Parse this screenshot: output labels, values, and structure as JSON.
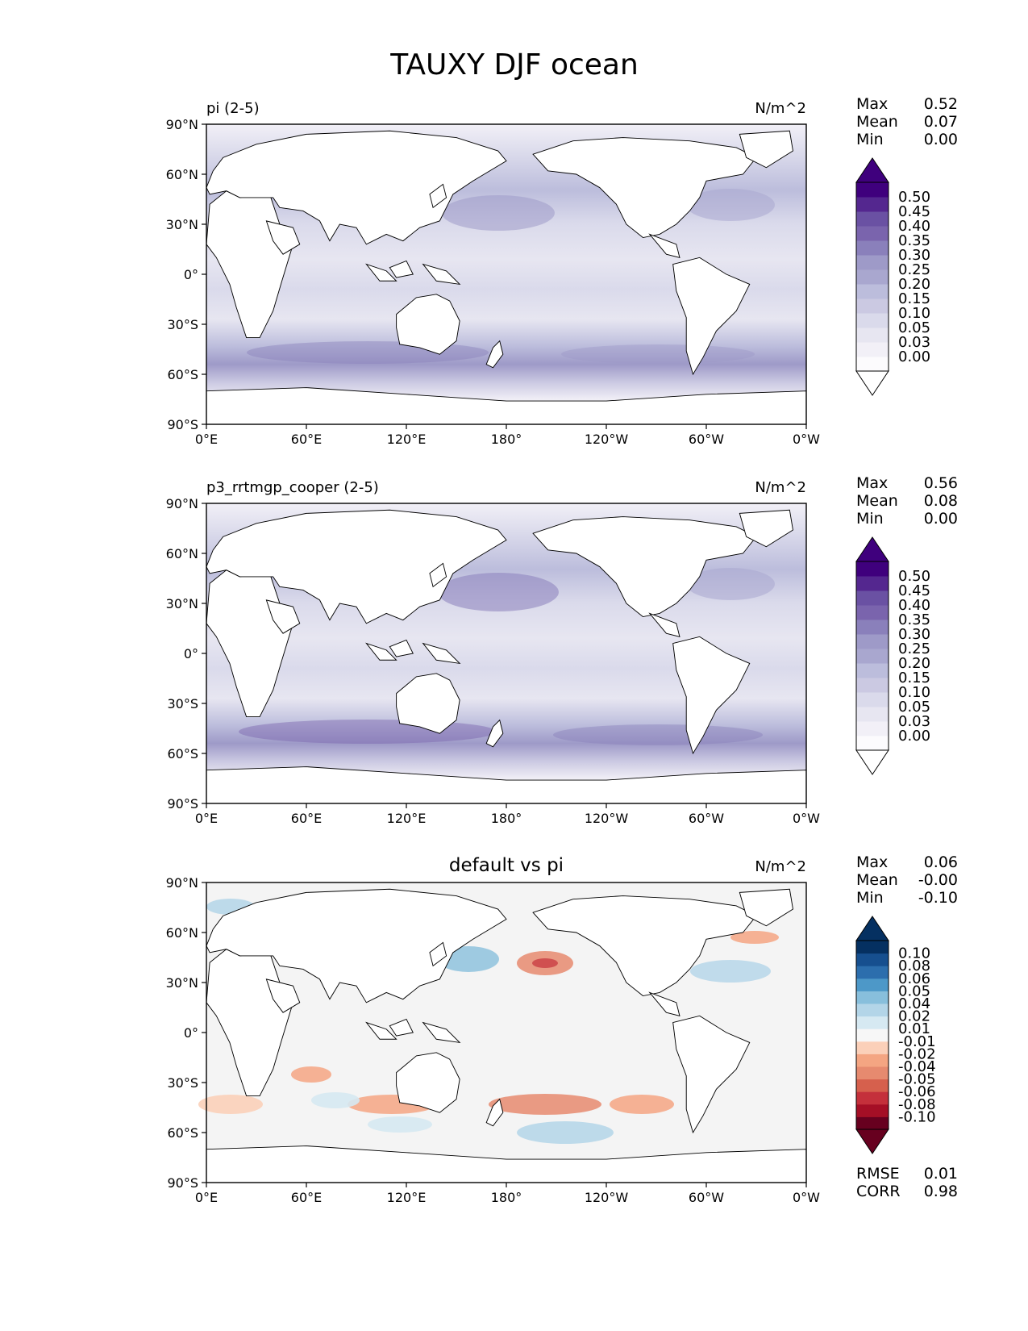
{
  "figure": {
    "title": "TAUXY DJF ocean"
  },
  "axes": {
    "lat_ticks": [
      "90°N",
      "60°N",
      "30°N",
      "0°",
      "30°S",
      "60°S",
      "90°S"
    ],
    "lon_ticks": [
      "0°E",
      "60°E",
      "120°E",
      "180°",
      "120°W",
      "60°W",
      "0°W"
    ]
  },
  "stat_labels": {
    "max": "Max",
    "mean": "Mean",
    "min": "Min",
    "rmse": "RMSE",
    "corr": "CORR"
  },
  "panels": [
    {
      "id": "test",
      "left_title": "pi (2-5)",
      "center_title": "",
      "units": "N/m^2",
      "stats": {
        "max": "0.52",
        "mean": "0.07",
        "min": "0.00"
      },
      "colormap": "purples",
      "colorbar": {
        "ticks": [
          "0.00",
          "0.03",
          "0.05",
          "0.10",
          "0.15",
          "0.20",
          "0.25",
          "0.30",
          "0.35",
          "0.40",
          "0.45",
          "0.50"
        ],
        "colors": [
          "#fcfbfd",
          "#f2f0f7",
          "#e7e6f1",
          "#dadaeb",
          "#cbc9e2",
          "#bcbddc",
          "#a9a7cf",
          "#9e9ac8",
          "#8a80bb",
          "#7a64ad",
          "#6a51a3",
          "#54278f",
          "#3f007d"
        ],
        "under": "#ffffff",
        "over": "#3f007d"
      }
    },
    {
      "id": "ref",
      "left_title": "p3_rrtmgp_cooper (2-5)",
      "center_title": "",
      "units": "N/m^2",
      "stats": {
        "max": "0.56",
        "mean": "0.08",
        "min": "0.00"
      },
      "colormap": "purples",
      "colorbar": {
        "ticks": [
          "0.00",
          "0.03",
          "0.05",
          "0.10",
          "0.15",
          "0.20",
          "0.25",
          "0.30",
          "0.35",
          "0.40",
          "0.45",
          "0.50"
        ],
        "colors": [
          "#fcfbfd",
          "#f2f0f7",
          "#e7e6f1",
          "#dadaeb",
          "#cbc9e2",
          "#bcbddc",
          "#a9a7cf",
          "#9e9ac8",
          "#8a80bb",
          "#7a64ad",
          "#6a51a3",
          "#54278f",
          "#3f007d"
        ],
        "under": "#ffffff",
        "over": "#3f007d"
      }
    },
    {
      "id": "diff",
      "left_title": "",
      "center_title": "default vs pi",
      "units": "N/m^2",
      "stats": {
        "max": "0.06",
        "mean": "-0.00",
        "min": "-0.10"
      },
      "extra_stats": {
        "rmse": "0.01",
        "corr": "0.98"
      },
      "colormap": "rdbu",
      "colorbar": {
        "ticks": [
          "-0.10",
          "-0.08",
          "-0.06",
          "-0.05",
          "-0.04",
          "-0.02",
          "-0.01",
          "0.01",
          "0.02",
          "0.04",
          "0.05",
          "0.06",
          "0.08",
          "0.10"
        ],
        "colors": [
          "#67001f",
          "#a50f26",
          "#c4303b",
          "#d6604d",
          "#e68a6f",
          "#f4a582",
          "#fbd0b9",
          "#f7f7f7",
          "#d6e9f2",
          "#b3d5e8",
          "#88bfdc",
          "#4d98c8",
          "#2c6ead",
          "#164f8f",
          "#053061"
        ],
        "under": "#67001f",
        "over": "#053061"
      }
    }
  ]
}
